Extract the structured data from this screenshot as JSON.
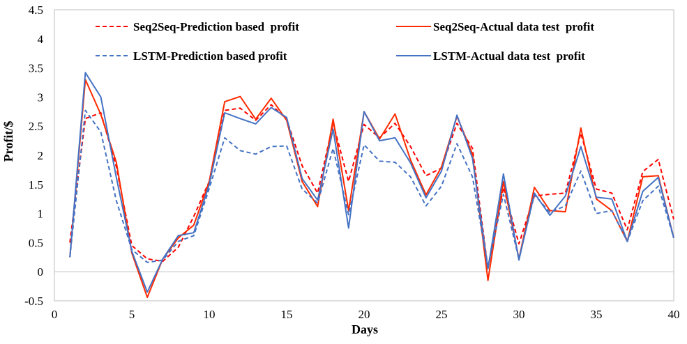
{
  "chart_data": {
    "type": "line",
    "title": "",
    "xlabel": "Days",
    "ylabel": "Profit/$",
    "xlim": [
      0,
      40
    ],
    "ylim": [
      -0.5,
      4.5
    ],
    "xticks": [
      0,
      5,
      10,
      15,
      20,
      25,
      30,
      35,
      40
    ],
    "yticks": [
      -0.5,
      0,
      0.5,
      1,
      1.5,
      2,
      2.5,
      3,
      3.5,
      4,
      4.5
    ],
    "ytick_labels": [
      "-0.5",
      "0",
      "0.5",
      "1",
      "1.5",
      "2",
      "2.5",
      "3",
      "3.5",
      "4",
      "4.5"
    ],
    "grid": false,
    "legend_position": "top",
    "x": [
      1,
      2,
      3,
      4,
      5,
      6,
      7,
      8,
      9,
      10,
      11,
      12,
      13,
      14,
      15,
      16,
      17,
      18,
      19,
      20,
      21,
      22,
      23,
      24,
      25,
      26,
      27,
      28,
      29,
      30,
      31,
      32,
      33,
      34,
      35,
      36,
      37,
      38,
      39,
      40
    ],
    "series": [
      {
        "name": "Seq2Seq-Prediction based  profit",
        "color": "#ff0000",
        "dash": "dashed",
        "values": [
          0.5,
          2.63,
          2.73,
          1.8,
          0.45,
          0.22,
          0.18,
          0.42,
          0.95,
          1.55,
          2.77,
          2.81,
          2.6,
          2.87,
          2.62,
          1.82,
          1.35,
          2.55,
          1.55,
          2.53,
          2.3,
          2.55,
          2.15,
          1.65,
          1.78,
          2.55,
          2.12,
          0.05,
          1.45,
          0.48,
          1.3,
          1.33,
          1.35,
          2.38,
          1.42,
          1.35,
          0.72,
          1.72,
          1.93,
          0.9
        ]
      },
      {
        "name": "Seq2Seq-Actual data test  profit",
        "color": "#ff2a00",
        "dash": "solid",
        "values": [
          0.25,
          3.3,
          2.7,
          1.88,
          0.32,
          -0.44,
          0.22,
          0.58,
          0.8,
          1.55,
          2.92,
          3.01,
          2.62,
          2.98,
          2.6,
          1.55,
          1.12,
          2.62,
          1.05,
          2.75,
          2.28,
          2.71,
          1.92,
          1.32,
          1.8,
          2.67,
          2.02,
          -0.15,
          1.55,
          0.22,
          1.45,
          1.05,
          1.03,
          2.47,
          1.25,
          1.05,
          0.52,
          1.63,
          1.65,
          0.58
        ]
      },
      {
        "name": "LSTM-Prediction based profit",
        "color": "#4472c4",
        "dash": "dashed",
        "values": [
          0.25,
          2.77,
          2.4,
          1.22,
          0.38,
          0.16,
          0.2,
          0.52,
          0.62,
          1.43,
          2.3,
          2.08,
          2.02,
          2.15,
          2.16,
          1.42,
          1.18,
          2.12,
          0.98,
          2.18,
          1.9,
          1.88,
          1.63,
          1.13,
          1.47,
          2.2,
          1.63,
          0.08,
          1.33,
          0.22,
          1.32,
          1.02,
          1.13,
          1.73,
          1.0,
          1.05,
          0.52,
          1.22,
          1.47,
          0.58
        ]
      },
      {
        "name": "LSTM-Actual data test  profit",
        "color": "#4472c4",
        "dash": "solid",
        "values": [
          0.25,
          3.42,
          3.0,
          1.62,
          0.35,
          -0.35,
          0.22,
          0.62,
          0.67,
          1.5,
          2.73,
          2.63,
          2.54,
          2.82,
          2.65,
          1.6,
          1.23,
          2.45,
          0.75,
          2.75,
          2.25,
          2.3,
          1.87,
          1.27,
          1.73,
          2.69,
          1.95,
          0.05,
          1.68,
          0.2,
          1.35,
          0.97,
          1.3,
          2.15,
          1.28,
          1.25,
          0.52,
          1.38,
          1.62,
          0.58
        ]
      }
    ]
  }
}
